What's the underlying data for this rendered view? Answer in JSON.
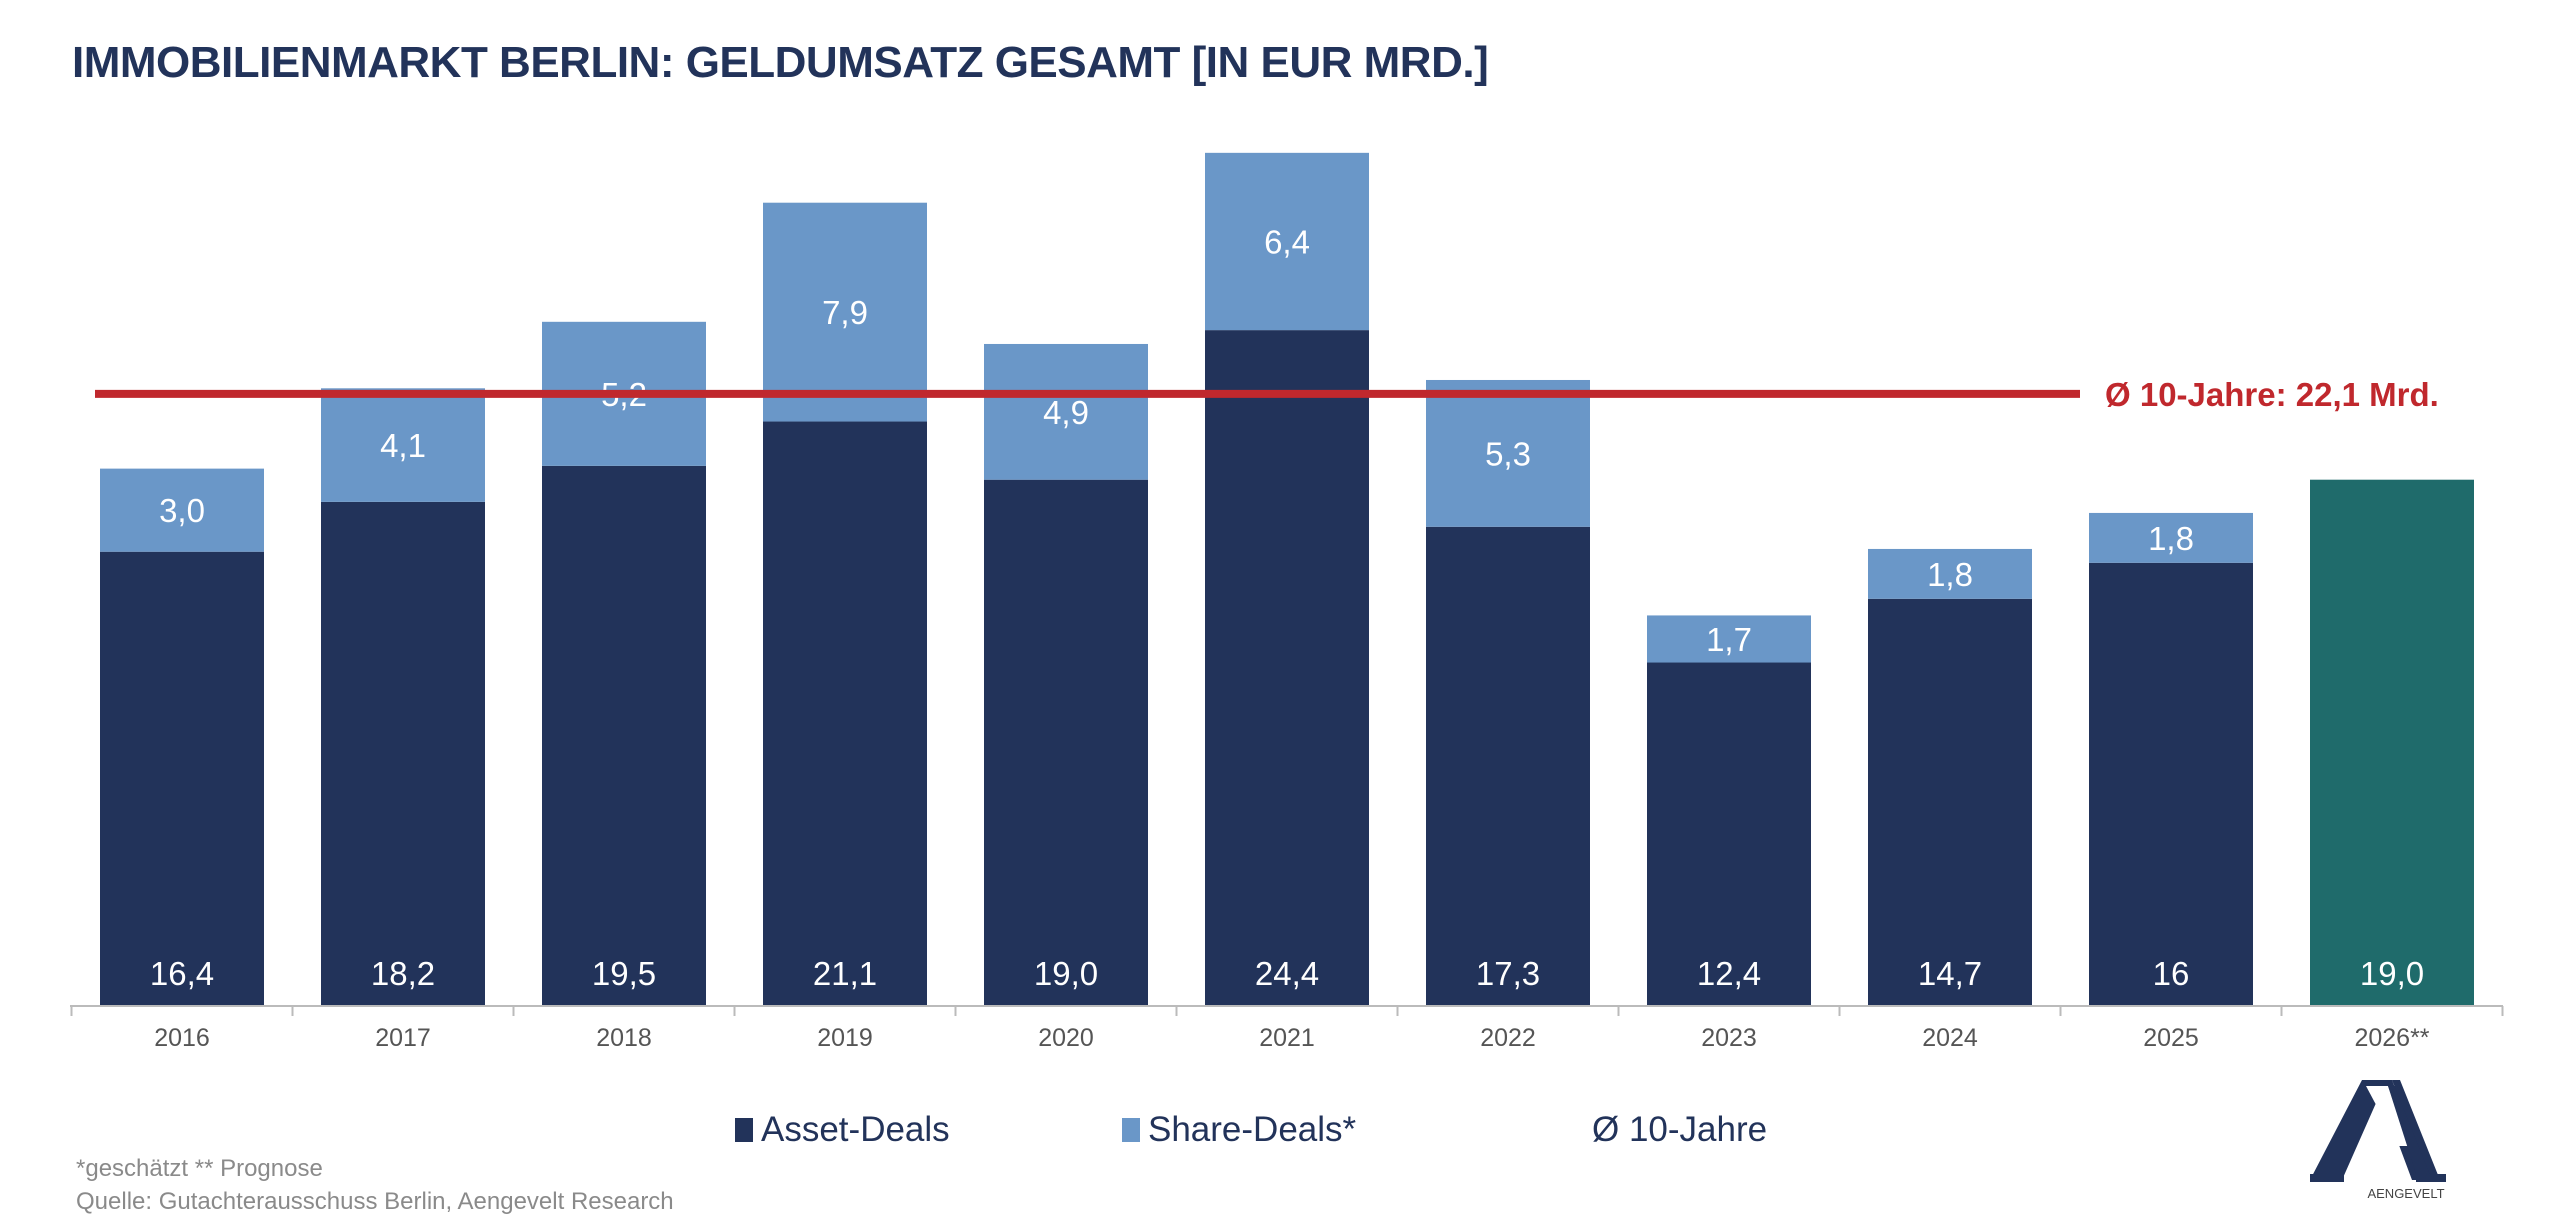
{
  "chart_data": {
    "type": "bar",
    "stacked": true,
    "title": "IMMOBILIENMARKT BERLIN: GELDUMSATZ GESAMT [IN EUR MRD.]",
    "categories": [
      "2016",
      "2017",
      "2018",
      "2019",
      "2020",
      "2021",
      "2022",
      "2023",
      "2024",
      "2025",
      "2026**"
    ],
    "series": [
      {
        "name": "Asset-Deals",
        "color": "#22335a",
        "values": [
          16.4,
          18.2,
          19.5,
          21.1,
          19.0,
          24.4,
          17.3,
          12.4,
          14.7,
          16,
          19.0
        ],
        "labels": [
          "16,4",
          "18,2",
          "19,5",
          "21,1",
          "19,0",
          "24,4",
          "17,3",
          "12,4",
          "14,7",
          "16",
          "19,0"
        ]
      },
      {
        "name": "Share-Deals*",
        "color": "#6a97c8",
        "values": [
          3.0,
          4.1,
          5.2,
          7.9,
          4.9,
          6.4,
          5.3,
          1.7,
          1.8,
          1.8,
          null
        ],
        "labels": [
          "3,0",
          "4,1",
          "5,2",
          "7,9",
          "4,9",
          "6,4",
          "5,3",
          "1,7",
          "1,8",
          "1,8",
          ""
        ]
      }
    ],
    "forecast_color": "#1f6b6b",
    "average": {
      "name": "Ø 10-Jahre",
      "value": 22.1,
      "label": "Ø 10-Jahre: 22,1 Mrd.",
      "color": "#c0282d"
    },
    "ylim": [
      0,
      31
    ],
    "grid": false,
    "legend_position": "bottom"
  },
  "footnotes": {
    "note": "*geschätzt  ** Prognose",
    "source": "Quelle: Gutachterausschuss Berlin, Aengevelt Research"
  },
  "logo_text": "AENGEVELT"
}
